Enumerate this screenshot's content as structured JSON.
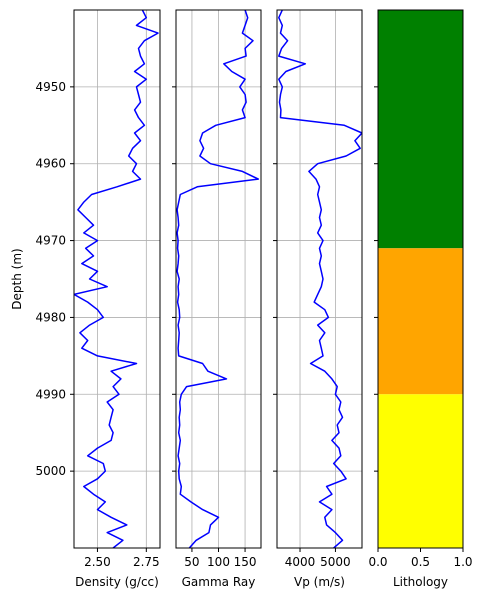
{
  "chart_data": {
    "type": "line",
    "ylabel": "Depth (m)",
    "ylim": [
      4940,
      5010
    ],
    "y_inverted": true,
    "y_ticks": [
      4950,
      4960,
      4970,
      4980,
      4990,
      5000
    ],
    "curve_color": "#0000ff",
    "panels": [
      {
        "xlabel": "Density (g/cc)",
        "xlim": [
          2.38,
          2.82
        ],
        "x_ticks": [
          2.5,
          2.75
        ],
        "x_tick_labels": [
          "2.50",
          "2.75"
        ],
        "grid": true,
        "series": [
          {
            "depth": [
              4940,
              4941,
              4942,
              4943,
              4944,
              4945,
              4946,
              4947,
              4948,
              4949,
              4950,
              4951,
              4952,
              4953,
              4954,
              4955,
              4956,
              4957,
              4958,
              4959,
              4960,
              4961,
              4962,
              4963,
              4964,
              4965,
              4966,
              4967,
              4968,
              4969,
              4970,
              4971,
              4972,
              4973,
              4974,
              4975,
              4976,
              4977,
              4978,
              4979,
              4980,
              4981,
              4982,
              4983,
              4984,
              4985,
              4986,
              4987,
              4988,
              4989,
              4990,
              4991,
              4992,
              4993,
              4994,
              4995,
              4996,
              4997,
              4998,
              4999,
              5000,
              5001,
              5002,
              5003,
              5004,
              5005,
              5006,
              5007,
              5008,
              5009,
              5010
            ],
            "values": [
              2.73,
              2.75,
              2.7,
              2.81,
              2.74,
              2.71,
              2.72,
              2.74,
              2.69,
              2.75,
              2.7,
              2.71,
              2.72,
              2.69,
              2.71,
              2.74,
              2.69,
              2.72,
              2.68,
              2.66,
              2.7,
              2.68,
              2.72,
              2.6,
              2.47,
              2.43,
              2.4,
              2.44,
              2.48,
              2.43,
              2.5,
              2.44,
              2.48,
              2.42,
              2.5,
              2.46,
              2.55,
              2.38,
              2.45,
              2.5,
              2.53,
              2.46,
              2.41,
              2.45,
              2.42,
              2.5,
              2.7,
              2.57,
              2.62,
              2.58,
              2.61,
              2.55,
              2.58,
              2.57,
              2.56,
              2.58,
              2.57,
              2.5,
              2.45,
              2.53,
              2.54,
              2.5,
              2.43,
              2.48,
              2.54,
              2.5,
              2.57,
              2.65,
              2.55,
              2.63,
              2.58
            ]
          }
        ]
      },
      {
        "xlabel": "Gamma Ray",
        "xlim": [
          20,
          180
        ],
        "x_ticks": [
          50,
          100,
          150
        ],
        "x_tick_labels": [
          "50",
          "100",
          "150"
        ],
        "grid": true,
        "series": [
          {
            "depth": [
              4940,
              4941,
              4942,
              4943,
              4944,
              4945,
              4946,
              4947,
              4948,
              4949,
              4950,
              4951,
              4952,
              4953,
              4954,
              4955,
              4956,
              4957,
              4958,
              4959,
              4960,
              4961,
              4962,
              4963,
              4964,
              4965,
              4966,
              4967,
              4968,
              4969,
              4970,
              4971,
              4972,
              4973,
              4974,
              4975,
              4976,
              4977,
              4978,
              4979,
              4980,
              4981,
              4982,
              4983,
              4984,
              4985,
              4986,
              4987,
              4988,
              4989,
              4990,
              4991,
              4992,
              4993,
              4994,
              4995,
              4996,
              4997,
              4998,
              4999,
              5000,
              5001,
              5002,
              5003,
              5004,
              5005,
              5006,
              5007,
              5008,
              5009,
              5010
            ],
            "values": [
              150,
              155,
              150,
              145,
              165,
              150,
              152,
              110,
              125,
              150,
              140,
              150,
              152,
              145,
              150,
              95,
              70,
              65,
              72,
              65,
              85,
              145,
              175,
              60,
              28,
              25,
              22,
              24,
              25,
              22,
              24,
              23,
              25,
              24,
              22,
              26,
              24,
              25,
              23,
              26,
              27,
              24,
              26,
              25,
              24,
              25,
              70,
              80,
              115,
              40,
              30,
              27,
              28,
              26,
              27,
              25,
              28,
              26,
              24,
              27,
              25,
              26,
              30,
              28,
              48,
              70,
              100,
              85,
              82,
              58,
              45
            ]
          }
        ]
      },
      {
        "xlabel": "Vp (m/s)",
        "xlim": [
          3350,
          5750
        ],
        "x_ticks": [
          4000,
          5000
        ],
        "x_tick_labels": [
          "4000",
          "5000"
        ],
        "grid": true,
        "series": [
          {
            "depth": [
              4940,
              4941,
              4942,
              4943,
              4944,
              4945,
              4946,
              4947,
              4948,
              4949,
              4950,
              4951,
              4952,
              4953,
              4954,
              4955,
              4956,
              4957,
              4958,
              4959,
              4960,
              4961,
              4962,
              4963,
              4964,
              4965,
              4966,
              4967,
              4968,
              4969,
              4970,
              4971,
              4972,
              4973,
              4974,
              4975,
              4976,
              4977,
              4978,
              4979,
              4980,
              4981,
              4982,
              4983,
              4984,
              4985,
              4986,
              4987,
              4988,
              4989,
              4990,
              4991,
              4992,
              4993,
              4994,
              4995,
              4996,
              4997,
              4998,
              4999,
              5000,
              5001,
              5002,
              5003,
              5004,
              5005,
              5006,
              5007,
              5008,
              5009,
              5010
            ],
            "values": [
              3500,
              3400,
              3500,
              3450,
              3650,
              3480,
              3400,
              4150,
              3600,
              3400,
              3500,
              3450,
              3420,
              3460,
              3450,
              5250,
              5750,
              5550,
              5700,
              5300,
              4500,
              4250,
              4450,
              4550,
              4500,
              4550,
              4600,
              4550,
              4600,
              4500,
              4650,
              4550,
              4600,
              4550,
              4600,
              4650,
              4600,
              4500,
              4400,
              4700,
              4800,
              4500,
              4700,
              4550,
              4600,
              4650,
              4300,
              4700,
              4900,
              5050,
              5000,
              5150,
              5100,
              5200,
              5050,
              5100,
              4900,
              5100,
              5150,
              4950,
              5150,
              5300,
              4750,
              4900,
              4550,
              4900,
              4700,
              4750,
              5000,
              5200,
              4950
            ]
          }
        ]
      },
      {
        "xlabel": "Lithology",
        "xlim": [
          0,
          1
        ],
        "x_ticks": [
          0,
          0.5,
          1
        ],
        "x_tick_labels": [
          "0.0",
          "0.5",
          "1.0"
        ],
        "grid": false,
        "intervals": [
          {
            "top": 4940,
            "base": 4971,
            "color": "#008000"
          },
          {
            "top": 4971,
            "base": 4990,
            "color": "#ffa500"
          },
          {
            "top": 4990,
            "base": 5010,
            "color": "#ffff00"
          }
        ]
      }
    ]
  }
}
